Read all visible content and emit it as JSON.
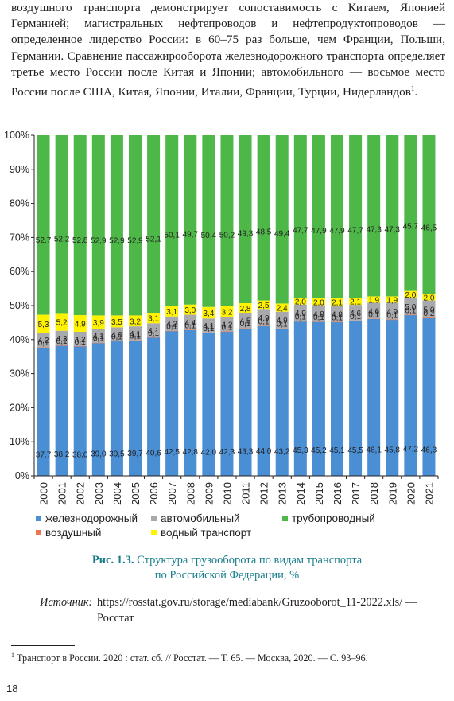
{
  "body_text": {
    "paragraph": "воздушного транспорта демонстрирует сопоставимость с Китаем, Японией Германией; магистральных нефтепроводов и нефтепродуктопроводов — определенное лидерство России: в 60–75 раз больше, чем Франции, Польши, Германии. Сравнение пассажирооборота железнодорожного транспорта определяет третье место России после Китая и Японии; автомобильного — восьмое место России после США, Китая, Японии, Италии, Франции, Турции, Нидерландов",
    "footnote_ref": "1"
  },
  "chart_data": {
    "type": "bar",
    "stacked": true,
    "categories": [
      "2000",
      "2001",
      "2002",
      "2003",
      "2004",
      "2005",
      "2006",
      "2007",
      "2008",
      "2009",
      "2010",
      "2011",
      "2012",
      "2013",
      "2014",
      "2015",
      "2016",
      "2017",
      "2018",
      "2019",
      "2020",
      "2021"
    ],
    "ylim": [
      0,
      100
    ],
    "yticks": [
      "0%",
      "10%",
      "20%",
      "30%",
      "40%",
      "50%",
      "60%",
      "70%",
      "80%",
      "90%",
      "100%"
    ],
    "ytick_values": [
      0,
      10,
      20,
      30,
      40,
      50,
      60,
      70,
      80,
      90,
      100
    ],
    "legend_position": "bottom",
    "grid": false,
    "series": [
      {
        "name": "железнодорожный",
        "color": "#4a8fd4",
        "values": [
          37.7,
          38.2,
          38.0,
          39.0,
          39.5,
          39.7,
          40.6,
          42.5,
          42.8,
          42.0,
          42.3,
          43.3,
          44.0,
          43.2,
          45.3,
          45.2,
          45.1,
          45.5,
          46.1,
          45.8,
          47.2,
          46.3
        ],
        "labels": [
          "37,7",
          "38,2",
          "38,0",
          "39,0",
          "39,5",
          "39,7",
          "40,6",
          "42,5",
          "42,8",
          "42,0",
          "42,3",
          "43,3",
          "44,0",
          "43,2",
          "45,3",
          "45,2",
          "45,1",
          "45,5",
          "46,1",
          "45,8",
          "47,2",
          "46,3"
        ]
      },
      {
        "name": "воздушный",
        "color": "#e8784a",
        "values": [
          0.1,
          0.1,
          0.1,
          0.1,
          0.1,
          0.1,
          0.1,
          0.1,
          0.1,
          0.1,
          0.1,
          0.1,
          0.1,
          0.1,
          0.1,
          0.1,
          0.1,
          0.1,
          0.1,
          0.1,
          0.1,
          0.2
        ],
        "labels": [
          "0,1",
          "0,1",
          "0,1",
          "0,1",
          "0,1",
          "0,1",
          "0,1",
          "0,1",
          "0,1",
          "0,1",
          "0,1",
          "0,1",
          "0,1",
          "0,1",
          "0,1",
          "0,1",
          "0,1",
          "0,1",
          "0,1",
          "0,1",
          "0,1",
          "0,2"
        ]
      },
      {
        "name": "автомобильный",
        "color": "#a7a9ac",
        "values": [
          4.2,
          4.3,
          4.2,
          4.1,
          4.0,
          4.1,
          4.1,
          4.2,
          4.4,
          4.1,
          4.2,
          4.5,
          4.9,
          4.9,
          4.9,
          4.8,
          4.8,
          4.6,
          4.6,
          4.9,
          5.0,
          5.0
        ],
        "labels": [
          "4,2",
          "4,3",
          "4,2",
          "4,1",
          "4,0",
          "4,1",
          "4,1",
          "4,2",
          "4,4",
          "4,1",
          "4,2",
          "4,5",
          "4,9",
          "4,9",
          "4,9",
          "4,8",
          "4,8",
          "4,6",
          "4,6",
          "4,9",
          "5,0",
          "5,0"
        ]
      },
      {
        "name": "водный транспорт",
        "color": "#fff200",
        "values": [
          5.3,
          5.2,
          4.9,
          3.9,
          3.5,
          3.2,
          3.1,
          3.1,
          3.0,
          3.4,
          3.2,
          2.8,
          2.5,
          2.4,
          2.0,
          2.0,
          2.1,
          2.1,
          1.9,
          1.9,
          2.0,
          2.0
        ],
        "labels": [
          "5,3",
          "5,2",
          "4,9",
          "3,9",
          "3,5",
          "3,2",
          "3,1",
          "3,1",
          "3,0",
          "3,4",
          "3,2",
          "2,8",
          "2,5",
          "2,4",
          "2,0",
          "2,0",
          "2,1",
          "2,1",
          "1,9",
          "1,9",
          "2,0",
          "2,0"
        ]
      },
      {
        "name": "трубопроводный",
        "color": "#4db848",
        "values": [
          52.7,
          52.2,
          52.8,
          52.9,
          52.9,
          52.9,
          52.1,
          50.1,
          49.7,
          50.4,
          50.2,
          49.3,
          48.5,
          49.4,
          47.7,
          47.9,
          47.9,
          47.7,
          47.3,
          47.3,
          45.7,
          46.5
        ],
        "labels": [
          "52,7",
          "52,2",
          "52,8",
          "52,9",
          "52,9",
          "52,9",
          "52,1",
          "50,1",
          "49,7",
          "50,4",
          "50,2",
          "49,3",
          "48,5",
          "49,4",
          "47,7",
          "47,9",
          "47,9",
          "47,7",
          "47,3",
          "47,3",
          "45,7",
          "46,5"
        ]
      }
    ],
    "legend_order": [
      "железнодорожный",
      "автомобильный",
      "трубопроводный",
      "воздушный",
      "водный транспорт"
    ]
  },
  "caption": {
    "label": "Рис. 1.3.",
    "line1": "Структура грузооборота по видам транспорта",
    "line2": "по Российской Федерации, %"
  },
  "source": {
    "label": "Источник:",
    "text": "https://rosstat.gov.ru/storage/mediabank/Gruzooborot_11-2022.xls/ — Росстат"
  },
  "footnote": {
    "number": "1",
    "text": "Транспорт в России. 2020 : стат. сб. // Росстат. — Т. 65. — Москва, 2020. — С. 93–96."
  },
  "page_number": "18"
}
